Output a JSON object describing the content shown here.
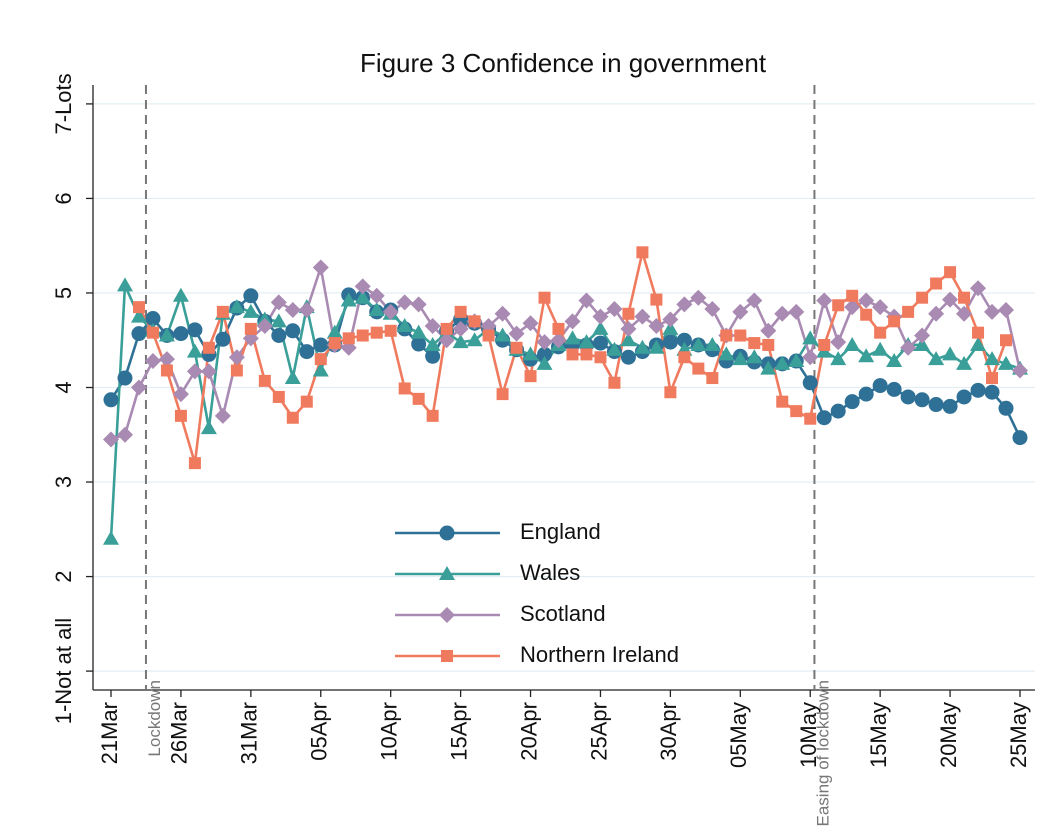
{
  "chart_data": {
    "type": "line",
    "title": "Figure 3 Confidence in government",
    "categories": [
      "21Mar",
      null,
      null,
      null,
      null,
      "26Mar",
      null,
      null,
      null,
      null,
      "31Mar",
      null,
      null,
      null,
      null,
      "05Apr",
      null,
      null,
      null,
      null,
      "10Apr",
      null,
      null,
      null,
      null,
      "15Apr",
      null,
      null,
      null,
      null,
      "20Apr",
      null,
      null,
      null,
      null,
      "25Apr",
      null,
      null,
      null,
      null,
      "30Apr",
      null,
      null,
      null,
      null,
      "05May",
      null,
      null,
      null,
      null,
      "10May",
      null,
      null,
      null,
      null,
      "15May",
      null,
      null,
      null,
      null,
      "20May",
      null,
      null,
      null,
      null,
      "25May"
    ],
    "series": [
      {
        "name": "England",
        "color": "#2f7196",
        "marker": "circle",
        "values": [
          3.87,
          4.1,
          4.57,
          4.73,
          4.55,
          4.57,
          4.61,
          4.35,
          4.51,
          4.84,
          4.97,
          4.7,
          4.55,
          4.6,
          4.38,
          4.45,
          4.45,
          4.98,
          4.95,
          4.8,
          4.82,
          4.62,
          4.46,
          4.33,
          4.6,
          4.72,
          4.68,
          4.62,
          4.5,
          4.4,
          4.3,
          4.35,
          4.43,
          4.45,
          4.45,
          4.47,
          4.38,
          4.32,
          4.38,
          4.45,
          4.48,
          4.5,
          4.45,
          4.4,
          4.28,
          4.33,
          4.27,
          4.25,
          4.25,
          4.28,
          4.05,
          3.68,
          3.75,
          3.85,
          3.93,
          4.02,
          3.98,
          3.9,
          3.87,
          3.82,
          3.8,
          3.9,
          3.97,
          3.95,
          3.78,
          3.47
        ]
      },
      {
        "name": "Wales",
        "color": "#3a9f98",
        "marker": "triangle",
        "values": [
          2.4,
          5.08,
          4.75,
          4.6,
          4.55,
          4.97,
          4.38,
          3.57,
          4.78,
          4.85,
          4.8,
          4.72,
          4.7,
          4.1,
          4.85,
          4.18,
          4.58,
          4.92,
          4.95,
          4.82,
          4.78,
          4.65,
          4.58,
          4.45,
          4.58,
          4.48,
          4.5,
          4.62,
          4.55,
          4.4,
          4.35,
          4.25,
          4.45,
          4.52,
          4.48,
          4.62,
          4.4,
          4.5,
          4.42,
          4.42,
          4.62,
          4.4,
          4.45,
          4.45,
          4.35,
          4.3,
          4.32,
          4.2,
          4.25,
          4.28,
          4.52,
          4.38,
          4.3,
          4.45,
          4.33,
          4.4,
          4.28,
          4.45,
          4.45,
          4.3,
          4.35,
          4.25,
          4.45,
          4.3,
          4.25,
          4.2
        ]
      },
      {
        "name": "Scotland",
        "color": "#a98ab2",
        "marker": "diamond",
        "values": [
          3.45,
          3.5,
          4.0,
          4.28,
          4.3,
          3.93,
          4.17,
          4.17,
          3.7,
          4.32,
          4.52,
          4.65,
          4.9,
          4.82,
          4.82,
          5.27,
          4.45,
          4.42,
          5.07,
          4.97,
          4.8,
          4.9,
          4.88,
          4.65,
          4.5,
          4.62,
          4.7,
          4.65,
          4.78,
          4.57,
          4.68,
          4.48,
          4.5,
          4.7,
          4.92,
          4.75,
          4.83,
          4.62,
          4.75,
          4.65,
          4.72,
          4.88,
          4.95,
          4.83,
          4.55,
          4.8,
          4.92,
          4.6,
          4.78,
          4.8,
          4.32,
          4.92,
          4.48,
          4.85,
          4.92,
          4.85,
          4.75,
          4.42,
          4.55,
          4.78,
          4.93,
          4.78,
          5.05,
          4.8,
          4.82,
          4.18
        ]
      },
      {
        "name": "Northern Ireland",
        "color": "#f07a5e",
        "marker": "square",
        "values": [
          null,
          null,
          4.85,
          4.58,
          4.18,
          3.7,
          3.2,
          4.42,
          4.8,
          4.18,
          4.62,
          4.07,
          3.9,
          3.68,
          3.85,
          4.3,
          4.47,
          4.52,
          4.55,
          4.58,
          4.6,
          3.99,
          3.88,
          3.7,
          4.62,
          4.8,
          4.7,
          4.55,
          3.93,
          4.42,
          4.12,
          4.95,
          4.62,
          4.35,
          4.35,
          4.32,
          4.05,
          4.78,
          5.43,
          4.93,
          3.95,
          4.32,
          4.2,
          4.1,
          4.55,
          4.55,
          4.47,
          4.45,
          3.85,
          3.75,
          3.67,
          4.45,
          4.87,
          4.97,
          4.77,
          4.58,
          4.7,
          4.8,
          4.95,
          5.1,
          5.22,
          4.95,
          4.58,
          4.1,
          4.5,
          null
        ]
      }
    ],
    "ylim": [
      0.8,
      7.2
    ],
    "yticks": [
      {
        "value": 1,
        "label": "1-Not at all"
      },
      2,
      3,
      4,
      5,
      6,
      {
        "value": 7,
        "label": "7-Lots"
      }
    ],
    "grid": true,
    "legend_position": "lower center",
    "annotations": [
      {
        "text": "Lockdown",
        "x": 2.5
      },
      {
        "text": "Easing of lockdown",
        "x": 50.3
      }
    ]
  }
}
